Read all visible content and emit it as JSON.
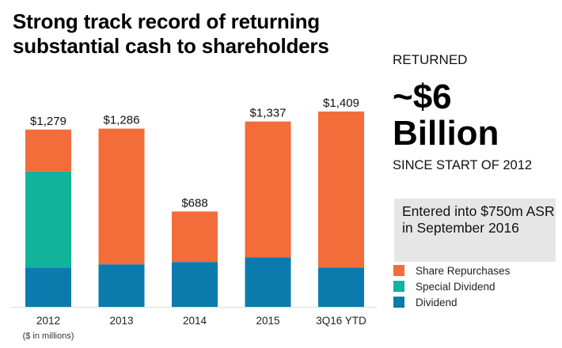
{
  "title_line1": "Strong track record of returning",
  "title_line2": "substantial cash to shareholders",
  "side": {
    "returned": "RETURNED",
    "amount": "~$6",
    "unit": "Billion",
    "since": "SINCE START OF 2012",
    "note": "Entered into $750m ASR in September 2016"
  },
  "colors": {
    "share_repurchases": "#f26d3a",
    "special_dividend": "#11b39a",
    "dividend": "#0b7bad",
    "axis": "#dddddd"
  },
  "chart_data": {
    "type": "bar",
    "stacked": true,
    "title": "Strong track record of returning substantial cash to shareholders",
    "xlabel": "",
    "ylabel": "",
    "unit_note": "($ in millions)",
    "categories": [
      "2012",
      "2013",
      "2014",
      "2015",
      "3Q16 YTD"
    ],
    "totals": [
      1279,
      1286,
      688,
      1337,
      1409
    ],
    "total_labels": [
      "$1,279",
      "$1,286",
      "$688",
      "$1,337",
      "$1,409"
    ],
    "series": [
      {
        "name": "Dividend",
        "key": "dividend",
        "values": [
          284,
          307,
          324,
          358,
          284
        ]
      },
      {
        "name": "Special Dividend",
        "key": "special_dividend",
        "values": [
          693,
          0,
          0,
          0,
          0
        ]
      },
      {
        "name": "Share Repurchases",
        "key": "share_repurchases",
        "values": [
          302,
          979,
          364,
          979,
          1125
        ]
      }
    ],
    "ylim": [
      0,
      1409
    ],
    "grid": false,
    "legend_position": "bottom-right",
    "legend": [
      "Share Repurchases",
      "Special Dividend",
      "Dividend"
    ]
  }
}
